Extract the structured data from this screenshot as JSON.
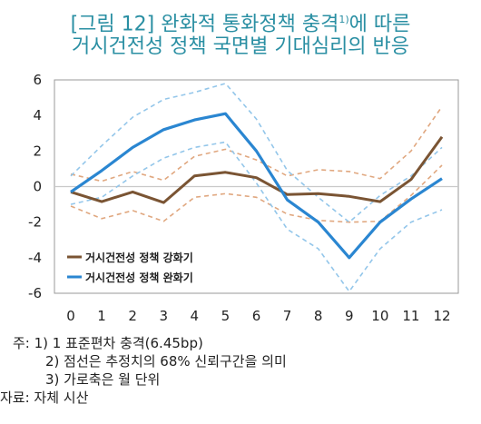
{
  "title": {
    "line1_main": "[그림 12] 완화적 통화정책 충격",
    "line1_sup": "1)",
    "line1_tail": "에 따른",
    "line2": "거시건전성 정책 국면별 기대심리의 반응"
  },
  "chart_data": {
    "type": "line",
    "x": [
      0,
      1,
      2,
      3,
      4,
      5,
      6,
      7,
      8,
      9,
      10,
      11,
      12
    ],
    "ylim": [
      -6,
      6
    ],
    "yticks": [
      6,
      4,
      2,
      0,
      -2,
      -4,
      -6
    ],
    "grid": false,
    "zero_line": true,
    "legend_position": "bottom-left",
    "series": [
      {
        "name": "거시건전성 정책 강화기",
        "color": "#7a5433",
        "style": "solid",
        "values": [
          -0.3,
          -0.85,
          -0.3,
          -0.9,
          0.6,
          0.8,
          0.5,
          -0.45,
          -0.4,
          -0.55,
          -0.85,
          0.4,
          2.8
        ],
        "upper": [
          0.7,
          0.3,
          0.85,
          0.35,
          1.7,
          2.1,
          1.5,
          0.6,
          0.95,
          0.85,
          0.45,
          2.0,
          4.5
        ],
        "lower": [
          -1.1,
          -1.8,
          -1.35,
          -1.95,
          -0.6,
          -0.4,
          -0.6,
          -1.55,
          -1.9,
          -2.0,
          -1.95,
          -0.5,
          1.2
        ]
      },
      {
        "name": "거시건전성 정책 완화기",
        "color": "#2a86d1",
        "style": "solid",
        "values": [
          -0.3,
          0.9,
          2.2,
          3.2,
          3.75,
          4.1,
          2.0,
          -0.75,
          -2.0,
          -4.0,
          -2.0,
          -0.7,
          0.45
        ],
        "upper": [
          0.6,
          2.3,
          3.9,
          4.9,
          5.3,
          5.8,
          3.8,
          0.9,
          -0.6,
          -2.0,
          -0.5,
          0.6,
          2.2
        ],
        "lower": [
          -1.0,
          -0.6,
          0.6,
          1.6,
          2.2,
          2.5,
          0.2,
          -2.4,
          -3.5,
          -5.9,
          -3.5,
          -2.0,
          -1.3
        ]
      }
    ]
  },
  "notes": [
    "주: 1) 1 표준편차 충격(6.45bp)",
    "2) 점선은 추정치의 68% 신뢰구간을 의미",
    "3) 가로축은 월 단위",
    "자료: 자체 시산"
  ]
}
